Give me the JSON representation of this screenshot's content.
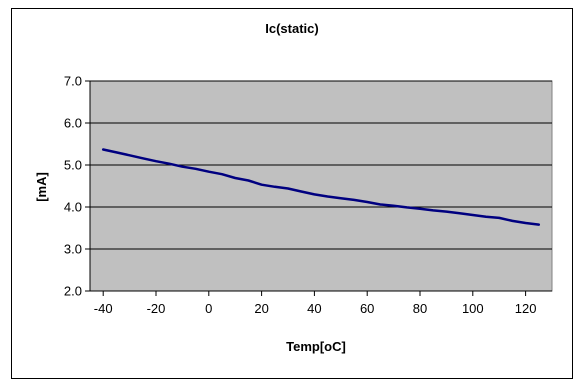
{
  "chart_data": {
    "type": "line",
    "title": "Ic(static)",
    "xlabel": "Temp[oC]",
    "ylabel": "[mA]",
    "xlim": [
      -45,
      130
    ],
    "ylim": [
      2.0,
      7.0
    ],
    "x_ticks": [
      -40,
      -20,
      0,
      20,
      40,
      60,
      80,
      100,
      120
    ],
    "x_tick_labels": [
      "-40",
      "-20",
      "0",
      "20",
      "40",
      "60",
      "80",
      "100",
      "120"
    ],
    "y_ticks": [
      2.0,
      3.0,
      4.0,
      5.0,
      6.0,
      7.0
    ],
    "y_tick_labels": [
      "2.0",
      "3.0",
      "4.0",
      "5.0",
      "6.0",
      "7.0"
    ],
    "grid": {
      "horizontal": true,
      "vertical": false
    },
    "legend": "none",
    "colors": {
      "line": "#000080",
      "plot_area": "#c0c0c0",
      "chart_area": "#ffffff",
      "gridline": "#000000"
    },
    "series": [
      {
        "x": [
          -40,
          -35,
          -30,
          -25,
          -20,
          -15,
          -10,
          -5,
          0,
          5,
          10,
          15,
          20,
          25,
          30,
          35,
          40,
          45,
          50,
          55,
          60,
          65,
          70,
          75,
          80,
          85,
          90,
          95,
          100,
          105,
          110,
          115,
          120,
          125
        ],
        "y": [
          5.37,
          5.3,
          5.23,
          5.16,
          5.09,
          5.03,
          4.96,
          4.91,
          4.84,
          4.78,
          4.69,
          4.63,
          4.53,
          4.48,
          4.44,
          4.37,
          4.3,
          4.25,
          4.21,
          4.17,
          4.12,
          4.06,
          4.03,
          3.99,
          3.96,
          3.92,
          3.89,
          3.85,
          3.81,
          3.77,
          3.74,
          3.67,
          3.62,
          3.58
        ]
      }
    ]
  }
}
